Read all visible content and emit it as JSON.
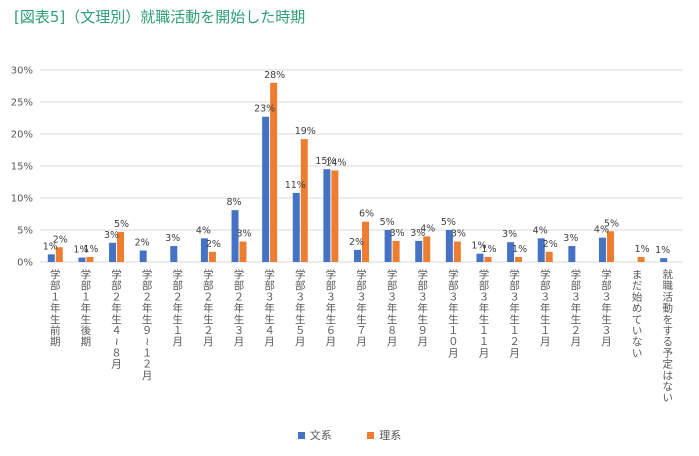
{
  "header": {
    "title": "[図表5]（文理別）就職活動を開始した時期"
  },
  "chart_data": {
    "type": "bar",
    "ylim": [
      0,
      30
    ],
    "y_ticks": [
      "0%",
      "5%",
      "10%",
      "15%",
      "20%",
      "25%",
      "30%"
    ],
    "grid": true,
    "legend_position": "bottom",
    "categories": [
      "学部1年生前期",
      "学部1年生後期",
      "学部2年生4~8月",
      "学部2年生9~12月",
      "学部2年生1月",
      "学部2年生2月",
      "学部2年生3月",
      "学部3年生4月",
      "学部3年生5月",
      "学部3年生6月",
      "学部3年生7月",
      "学部3年生8月",
      "学部3年生9月",
      "学部3年生10月",
      "学部3年生11月",
      "学部3年生12月",
      "学部3年生1月",
      "学部3年生2月",
      "学部3年生3月",
      "まだ始めていない",
      "就職活動をする予定はない"
    ],
    "category_vertical_text": [
      "学部１年生前期",
      "学部１年生後期",
      "学部２年生４~８月",
      "学部２年生９~１２月",
      "学部２年生１月",
      "学部２年生２月",
      "学部２年生３月",
      "学部３年生４月",
      "学部３年生５月",
      "学部３年生６月",
      "学部３年生７月",
      "学部３年生８月",
      "学部３年生９月",
      "学部３年生１０月",
      "学部３年生１１月",
      "学部３年生１２月",
      "学部３年生１月",
      "学部３年生２月",
      "学部３年生３月",
      "まだ始めていない",
      "就職活動をする予定はない"
    ],
    "series": [
      {
        "name": "文系",
        "color": "#4472c4",
        "values": [
          1.2,
          0.7,
          3.0,
          1.8,
          2.5,
          3.7,
          8.1,
          22.7,
          10.8,
          14.5,
          1.9,
          5.0,
          3.3,
          5.0,
          1.3,
          3.1,
          3.7,
          2.5,
          3.8,
          0,
          0.6
        ],
        "labels": [
          "1%",
          "1%",
          "3%",
          "2%",
          "3%",
          "4%",
          "8%",
          "23%",
          "11%",
          "15%",
          "2%",
          "5%",
          "3%",
          "5%",
          "1%",
          "3%",
          "4%",
          "3%",
          "4%",
          "",
          "1%"
        ]
      },
      {
        "name": "理系",
        "color": "#ed7d31",
        "values": [
          2.3,
          0.8,
          4.7,
          0,
          0,
          1.6,
          3.2,
          28.0,
          19.2,
          14.3,
          6.3,
          3.3,
          4.0,
          3.2,
          0.8,
          0.8,
          1.6,
          0,
          4.8,
          0.8,
          0
        ],
        "labels": [
          "2%",
          "1%",
          "5%",
          "",
          "",
          "2%",
          "3%",
          "28%",
          "19%",
          "14%",
          "6%",
          "3%",
          "4%",
          "3%",
          "1%",
          "1%",
          "2%",
          "",
          "5%",
          "1%",
          ""
        ]
      }
    ]
  }
}
